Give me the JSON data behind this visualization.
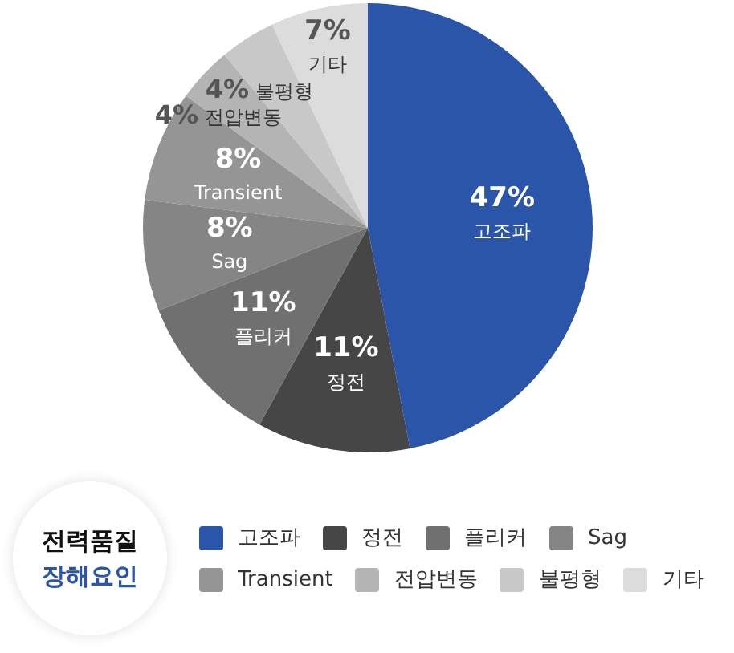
{
  "chart_data": {
    "type": "pie",
    "title": "전력품질",
    "subtitle": "장해요인",
    "categories": [
      "고조파",
      "정전",
      "플리커",
      "Sag",
      "Transient",
      "전압변동",
      "불평형",
      "기타"
    ],
    "values": [
      47,
      11,
      11,
      8,
      8,
      4,
      4,
      7
    ],
    "colors": [
      "#2a55a8",
      "#464646",
      "#707070",
      "#858585",
      "#959595",
      "#b4b4b4",
      "#c8c8c8",
      "#dcdcdc"
    ],
    "value_labels": [
      "47%",
      "11%",
      "11%",
      "8%",
      "8%",
      "4%",
      "4%",
      "7%"
    ],
    "legend": "bottom"
  }
}
